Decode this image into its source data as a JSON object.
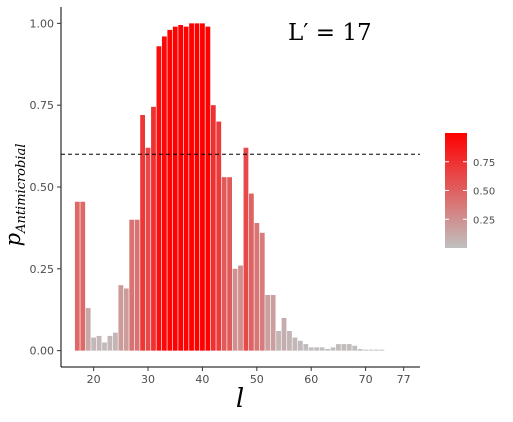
{
  "chart_data": {
    "type": "bar",
    "annotation": "L′ = 17",
    "xlabel": "l",
    "ylabel_main": "p",
    "ylabel_sub": "Antimicrobial",
    "x_ticks": [
      20,
      30,
      40,
      50,
      60,
      70,
      77
    ],
    "y_ticks": [
      "0.00",
      "0.25",
      "0.50",
      "0.75",
      "1.00"
    ],
    "y_tick_values": [
      0,
      0.25,
      0.5,
      0.75,
      1.0
    ],
    "xlim": [
      14,
      80
    ],
    "ylim": [
      -0.05,
      1.05
    ],
    "threshold": 0.6,
    "grid": false,
    "legend_position": "right",
    "colorbar_ticks": [
      "0.25",
      "0.50",
      "0.75"
    ],
    "colorbar_tick_values": [
      0.25,
      0.5,
      0.75
    ],
    "colorscale": [
      "#c0c0c0",
      "#ff0000"
    ],
    "x": [
      17,
      18,
      19,
      20,
      21,
      22,
      23,
      24,
      25,
      26,
      27,
      28,
      29,
      30,
      31,
      32,
      33,
      34,
      35,
      36,
      37,
      38,
      39,
      40,
      41,
      42,
      43,
      44,
      45,
      46,
      47,
      48,
      49,
      50,
      51,
      52,
      53,
      54,
      55,
      56,
      57,
      58,
      59,
      60,
      61,
      62,
      63,
      64,
      65,
      66,
      67,
      68,
      69,
      70,
      71,
      72,
      73
    ],
    "values": [
      0.455,
      0.455,
      0.13,
      0.04,
      0.045,
      0.025,
      0.045,
      0.055,
      0.2,
      0.19,
      0.4,
      0.4,
      0.72,
      0.62,
      0.745,
      0.93,
      0.96,
      0.98,
      0.99,
      0.995,
      0.99,
      1.0,
      1.0,
      1.0,
      0.99,
      0.75,
      0.7,
      0.53,
      0.53,
      0.25,
      0.26,
      0.62,
      0.48,
      0.39,
      0.36,
      0.17,
      0.17,
      0.06,
      0.1,
      0.06,
      0.04,
      0.03,
      0.02,
      0.01,
      0.01,
      0.01,
      0.005,
      0.01,
      0.02,
      0.02,
      0.02,
      0.015,
      0.005,
      0.003,
      0.003,
      0.003,
      0.003
    ]
  }
}
